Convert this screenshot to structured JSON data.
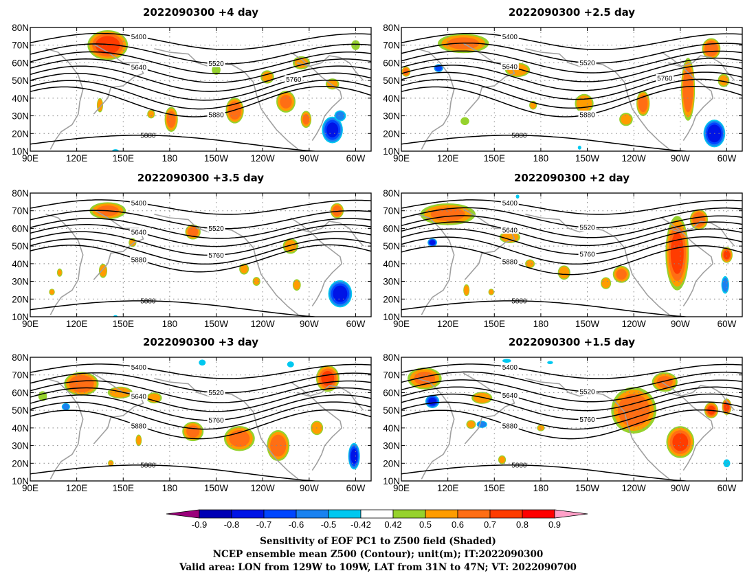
{
  "panels": [
    {
      "title": "2022090300 +4 day",
      "positive_blobs": [
        [
          140,
          70,
          17,
          11,
          0.75
        ],
        [
          265,
          60,
          9,
          6,
          0.55
        ],
        [
          300,
          70,
          5,
          5,
          0.5
        ],
        [
          285,
          48,
          7,
          5,
          0.55
        ],
        [
          255,
          38,
          9,
          9,
          0.62
        ],
        [
          222,
          33,
          8,
          10,
          0.68
        ],
        [
          181,
          28,
          6,
          10,
          0.65
        ],
        [
          135,
          36,
          3,
          6,
          0.6
        ],
        [
          168,
          31,
          4,
          4,
          0.55
        ],
        [
          268,
          28,
          5,
          7,
          0.62
        ],
        [
          210,
          56,
          5,
          5,
          0.5
        ],
        [
          243,
          52,
          7,
          6,
          0.55
        ]
      ],
      "negative_blobs": [
        [
          285,
          22,
          9,
          10,
          -0.72
        ],
        [
          290,
          30,
          6,
          5,
          -0.55
        ],
        [
          145,
          10,
          4,
          2,
          -0.5
        ]
      ],
      "contours": [
        {
          "base": 72,
          "amp": 3.5,
          "label": "5400"
        },
        {
          "base": 65,
          "amp": 4.5,
          "label": "5520"
        },
        {
          "base": 60,
          "amp": 5,
          "label": ""
        },
        {
          "base": 55.5,
          "amp": 5.5,
          "label": "5640"
        },
        {
          "base": 51,
          "amp": 6,
          "label": ""
        },
        {
          "base": 46.5,
          "amp": 6.5,
          "label": "5760"
        },
        {
          "base": 42,
          "amp": 7,
          "label": ""
        },
        {
          "base": 38,
          "amp": 7.5,
          "label": "5880"
        }
      ],
      "label_5880_south": "5880"
    },
    {
      "title": "2022090300 +2.5 day",
      "positive_blobs": [
        [
          130,
          71,
          24,
          8,
          0.62
        ],
        [
          165,
          56,
          12,
          6,
          0.6
        ],
        [
          208,
          37,
          9,
          8,
          0.6
        ],
        [
          246,
          37,
          6,
          10,
          0.66
        ],
        [
          275,
          45,
          6,
          24,
          0.7
        ],
        [
          290,
          68,
          8,
          8,
          0.7
        ],
        [
          298,
          50,
          6,
          6,
          0.55
        ],
        [
          235,
          28,
          7,
          6,
          0.55
        ],
        [
          175,
          36,
          4,
          4,
          0.55
        ],
        [
          131,
          27,
          5,
          4,
          0.5
        ],
        [
          93,
          55,
          4,
          4,
          0.65
        ]
      ],
      "negative_blobs": [
        [
          114,
          57,
          4,
          3,
          -0.7
        ],
        [
          292,
          20,
          9,
          10,
          -0.78
        ],
        [
          205,
          12,
          2,
          2,
          -0.5
        ]
      ],
      "contours": [
        {
          "base": 72,
          "amp": 3.5,
          "label": "5400"
        },
        {
          "base": 65.5,
          "amp": 4.5,
          "label": "5520"
        },
        {
          "base": 60.5,
          "amp": 5,
          "label": ""
        },
        {
          "base": 56,
          "amp": 5.5,
          "label": "5640"
        },
        {
          "base": 51.5,
          "amp": 6,
          "label": ""
        },
        {
          "base": 47,
          "amp": 6.5,
          "label": "5760"
        },
        {
          "base": 42.5,
          "amp": 7,
          "label": ""
        },
        {
          "base": 38,
          "amp": 7.5,
          "label": "5880"
        }
      ],
      "label_5880_south": "5880"
    },
    {
      "title": "2022090300 +3.5 day",
      "positive_blobs": [
        [
          140,
          70,
          17,
          7,
          0.62
        ],
        [
          195,
          58,
          7,
          6,
          0.65
        ],
        [
          156,
          52,
          4,
          4,
          0.55
        ],
        [
          258,
          50,
          8,
          7,
          0.55
        ],
        [
          288,
          70,
          6,
          6,
          0.66
        ],
        [
          228,
          37,
          5,
          5,
          0.55
        ],
        [
          137,
          36,
          4,
          6,
          0.6
        ],
        [
          109,
          35,
          3,
          4,
          0.52
        ],
        [
          104,
          24,
          3,
          3,
          0.55
        ],
        [
          262,
          28,
          4,
          5,
          0.58
        ],
        [
          236,
          30,
          4,
          4,
          0.55
        ]
      ],
      "negative_blobs": [
        [
          290,
          23,
          10,
          10,
          -0.75
        ],
        [
          145,
          10,
          3,
          2,
          -0.45
        ]
      ],
      "contours": [
        {
          "base": 72,
          "amp": 3,
          "label": "5400"
        },
        {
          "base": 65,
          "amp": 4,
          "label": "5520"
        },
        {
          "base": 60,
          "amp": 4.5,
          "label": ""
        },
        {
          "base": 56,
          "amp": 5,
          "label": "5640"
        },
        {
          "base": 51.5,
          "amp": 5.5,
          "label": "5760"
        },
        {
          "base": 47,
          "amp": 6,
          "label": ""
        },
        {
          "base": 43,
          "amp": 6.5,
          "label": "5880"
        }
      ],
      "label_5880_south": "5880"
    },
    {
      "title": "2022090300 +2 day",
      "positive_blobs": [
        [
          120,
          68,
          26,
          9,
          0.62
        ],
        [
          160,
          55,
          10,
          5,
          0.6
        ],
        [
          173,
          40,
          5,
          4,
          0.55
        ],
        [
          195,
          35,
          6,
          6,
          0.6
        ],
        [
          232,
          34,
          8,
          7,
          0.62
        ],
        [
          268,
          46,
          10,
          28,
          0.72
        ],
        [
          282,
          65,
          8,
          8,
          0.68
        ],
        [
          300,
          45,
          5,
          6,
          0.72
        ],
        [
          132,
          25,
          3,
          5,
          0.6
        ],
        [
          148,
          24,
          3,
          3,
          0.55
        ],
        [
          222,
          29,
          5,
          5,
          0.6
        ]
      ],
      "negative_blobs": [
        [
          110,
          52,
          4,
          3,
          -0.75
        ],
        [
          299,
          28,
          4,
          8,
          -0.55
        ],
        [
          165,
          78,
          2,
          2,
          -0.5
        ]
      ],
      "contours": [
        {
          "base": 72,
          "amp": 3,
          "label": "5400"
        },
        {
          "base": 66,
          "amp": 4.5,
          "label": "5520"
        },
        {
          "base": 61,
          "amp": 5,
          "label": ""
        },
        {
          "base": 57,
          "amp": 5.5,
          "label": "5640"
        },
        {
          "base": 52.5,
          "amp": 6,
          "label": "5760"
        },
        {
          "base": 47.5,
          "amp": 6.5,
          "label": ""
        },
        {
          "base": 42,
          "amp": 7,
          "label": "5880"
        }
      ],
      "label_5880_south": "5880"
    },
    {
      "title": "2022090300 +3 day",
      "positive_blobs": [
        [
          123,
          65,
          15,
          9,
          0.7
        ],
        [
          148,
          60,
          12,
          5,
          0.6
        ],
        [
          170,
          57,
          8,
          5,
          0.55
        ],
        [
          195,
          38,
          10,
          8,
          0.62
        ],
        [
          225,
          34,
          14,
          10,
          0.65
        ],
        [
          250,
          30,
          10,
          12,
          0.68
        ],
        [
          282,
          68,
          10,
          10,
          0.72
        ],
        [
          275,
          40,
          6,
          6,
          0.6
        ],
        [
          160,
          33,
          3,
          5,
          0.58
        ],
        [
          142,
          20,
          3,
          3,
          0.55
        ],
        [
          98,
          58,
          5,
          5,
          0.5
        ]
      ],
      "negative_blobs": [
        [
          113,
          52,
          4,
          3,
          -0.6
        ],
        [
          299,
          24,
          5,
          10,
          -0.72
        ],
        [
          201,
          77,
          4,
          3,
          -0.5
        ],
        [
          258,
          76,
          4,
          3,
          -0.5
        ]
      ],
      "contours": [
        {
          "base": 72,
          "amp": 3,
          "label": "5400"
        },
        {
          "base": 65.5,
          "amp": 4.5,
          "label": "5520"
        },
        {
          "base": 60.5,
          "amp": 5,
          "label": ""
        },
        {
          "base": 56,
          "amp": 5.5,
          "label": "5640"
        },
        {
          "base": 51.5,
          "amp": 6,
          "label": "5760"
        },
        {
          "base": 47,
          "amp": 6.5,
          "label": ""
        },
        {
          "base": 42,
          "amp": 7,
          "label": "5880"
        }
      ],
      "label_5880_south": "5880"
    },
    {
      "title": "2022090300 +1.5 day",
      "positive_blobs": [
        [
          105,
          68,
          16,
          9,
          0.62
        ],
        [
          142,
          57,
          10,
          5,
          0.6
        ],
        [
          135,
          42,
          5,
          4,
          0.55
        ],
        [
          155,
          22,
          4,
          4,
          0.55
        ],
        [
          180,
          40,
          4,
          3,
          0.55
        ],
        [
          240,
          50,
          20,
          18,
          0.68
        ],
        [
          270,
          32,
          12,
          12,
          0.72
        ],
        [
          290,
          50,
          6,
          6,
          0.72
        ],
        [
          260,
          66,
          12,
          8,
          0.62
        ],
        [
          300,
          52,
          4,
          6,
          0.75
        ]
      ],
      "negative_blobs": [
        [
          110,
          55,
          6,
          5,
          -0.72
        ],
        [
          142,
          42,
          5,
          3,
          -0.6
        ],
        [
          300,
          20,
          4,
          4,
          -0.5
        ],
        [
          158,
          78,
          5,
          2,
          -0.5
        ],
        [
          186,
          77,
          4,
          2,
          -0.45
        ]
      ],
      "contours": [
        {
          "base": 72,
          "amp": 3,
          "label": "5400"
        },
        {
          "base": 66,
          "amp": 4.5,
          "label": "5520"
        },
        {
          "base": 61,
          "amp": 5,
          "label": ""
        },
        {
          "base": 56.5,
          "amp": 5.5,
          "label": "5640"
        },
        {
          "base": 52,
          "amp": 6,
          "label": "5760"
        },
        {
          "base": 47,
          "amp": 6.5,
          "label": ""
        },
        {
          "base": 42,
          "amp": 7,
          "label": "5880"
        }
      ],
      "label_5880_south": "5880"
    }
  ],
  "axes": {
    "lon_range": [
      90,
      310
    ],
    "lat_range": [
      10,
      80
    ],
    "lon_ticks": [
      90,
      120,
      150,
      180,
      210,
      240,
      270,
      300
    ],
    "lon_tick_labels": [
      "90E",
      "120E",
      "150E",
      "180",
      "150W",
      "120W",
      "90W",
      "60W"
    ],
    "lat_ticks": [
      10,
      20,
      30,
      40,
      50,
      60,
      70,
      80
    ],
    "lat_tick_labels": [
      "10N",
      "20N",
      "30N",
      "40N",
      "50N",
      "60N",
      "70N",
      "80N"
    ]
  },
  "colorbar": {
    "labels": [
      "-0.9",
      "-0.8",
      "-0.7",
      "-0.6",
      "-0.5",
      "-0.42",
      "0.42",
      "0.5",
      "0.6",
      "0.7",
      "0.8",
      "0.9"
    ],
    "colors": [
      "#9a007a",
      "#0000b4",
      "#0014e6",
      "#0046ff",
      "#1a82f0",
      "#00c8f0",
      "#ffffff",
      "#96d22d",
      "#ff9c00",
      "#ff6e14",
      "#ff3c00",
      "#ff0000",
      "#ffa0c8"
    ],
    "levels": [
      -0.9,
      -0.8,
      -0.7,
      -0.6,
      -0.5,
      -0.42,
      0.42,
      0.5,
      0.6,
      0.7,
      0.8,
      0.9
    ]
  },
  "footer": {
    "line1": "Sensitivity of EOF PC1 to Z500 field (Shaded)",
    "line2": "NCEP ensemble mean Z500 (Contour); unit(m); IT:2022090300",
    "line3": "Valid area: LON from 129W to 109W, LAT from 31N to 47N; VT: 2022090700"
  }
}
